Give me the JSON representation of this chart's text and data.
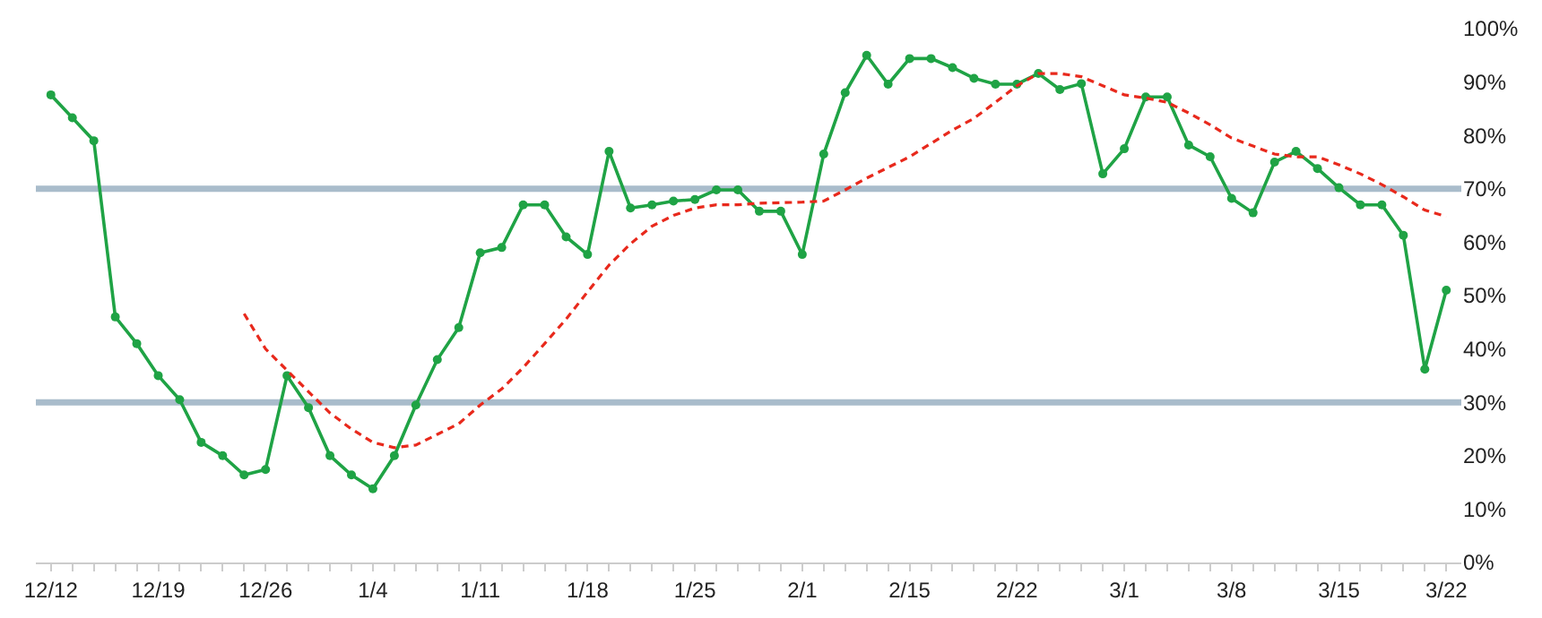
{
  "chart_data": {
    "type": "line",
    "categories": [
      "12/12",
      null,
      null,
      null,
      null,
      "12/19",
      null,
      null,
      null,
      null,
      "12/26",
      null,
      null,
      null,
      null,
      "1/4",
      null,
      null,
      null,
      null,
      "1/11",
      null,
      null,
      null,
      null,
      "1/18",
      null,
      null,
      null,
      null,
      "1/25",
      null,
      null,
      null,
      null,
      "2/1",
      null,
      null,
      null,
      null,
      "2/15",
      null,
      null,
      null,
      null,
      "2/22",
      null,
      null,
      null,
      null,
      "3/1",
      null,
      null,
      null,
      null,
      "3/8",
      null,
      null,
      null,
      null,
      "3/15",
      null,
      null,
      null,
      null,
      "3/22"
    ],
    "series": [
      {
        "color": "#1fa345",
        "marker": "circle",
        "line_style": "solid",
        "values": [
          87.6,
          83.3,
          79,
          46,
          41,
          35,
          30.5,
          22.5,
          20,
          16.4,
          17.4,
          35,
          29,
          20,
          16.4,
          13.8,
          20,
          29.5,
          38,
          44,
          58,
          59,
          67,
          67,
          61,
          57.7,
          77,
          66.4,
          67,
          67.7,
          68,
          69.8,
          69.8,
          65.8,
          65.8,
          57.7,
          76.5,
          88,
          95,
          89.6,
          94.4,
          94.4,
          92.7,
          90.7,
          89.6,
          89.6,
          91.6,
          88.6,
          89.7,
          72.8,
          77.5,
          87.2,
          87.2,
          78.2,
          76,
          68.2,
          65.5,
          75,
          77,
          73.8,
          70.2,
          67,
          67,
          61.3,
          36.2,
          51
        ]
      },
      {
        "color": "#e8291c",
        "marker": "none",
        "line_style": "dashed",
        "values": [
          null,
          null,
          null,
          null,
          null,
          null,
          null,
          null,
          null,
          46.6,
          40,
          36,
          32,
          28,
          25,
          22.5,
          21.5,
          22,
          24,
          26,
          29.5,
          32.5,
          36.5,
          41,
          45.6,
          50.7,
          55.7,
          59.7,
          63,
          65,
          66.4,
          67,
          67,
          67.3,
          67.4,
          67.5,
          67.7,
          69.8,
          72,
          74,
          76,
          78.5,
          81,
          83.2,
          86.2,
          89.3,
          91.6,
          91.6,
          91,
          89.3,
          87.6,
          87,
          86.2,
          84.2,
          82,
          79.5,
          78,
          76.5,
          76,
          76,
          74.5,
          72.8,
          70.8,
          68.5,
          66,
          64.8
        ]
      }
    ],
    "ylim": [
      0,
      100
    ],
    "yticks": [
      {
        "value": 0,
        "label": "0%"
      },
      {
        "value": 10,
        "label": "10%"
      },
      {
        "value": 20,
        "label": "20%"
      },
      {
        "value": 30,
        "label": "30%"
      },
      {
        "value": 40,
        "label": "40%"
      },
      {
        "value": 50,
        "label": "50%"
      },
      {
        "value": 60,
        "label": "60%"
      },
      {
        "value": 70,
        "label": "70%"
      },
      {
        "value": 80,
        "label": "80%"
      },
      {
        "value": 90,
        "label": "90%"
      },
      {
        "value": 100,
        "label": "100%"
      }
    ],
    "ref_lines": [
      {
        "axis": "y",
        "value": 70,
        "color": "#a9bccb"
      },
      {
        "axis": "y",
        "value": 30,
        "color": "#a9bccb"
      }
    ]
  }
}
